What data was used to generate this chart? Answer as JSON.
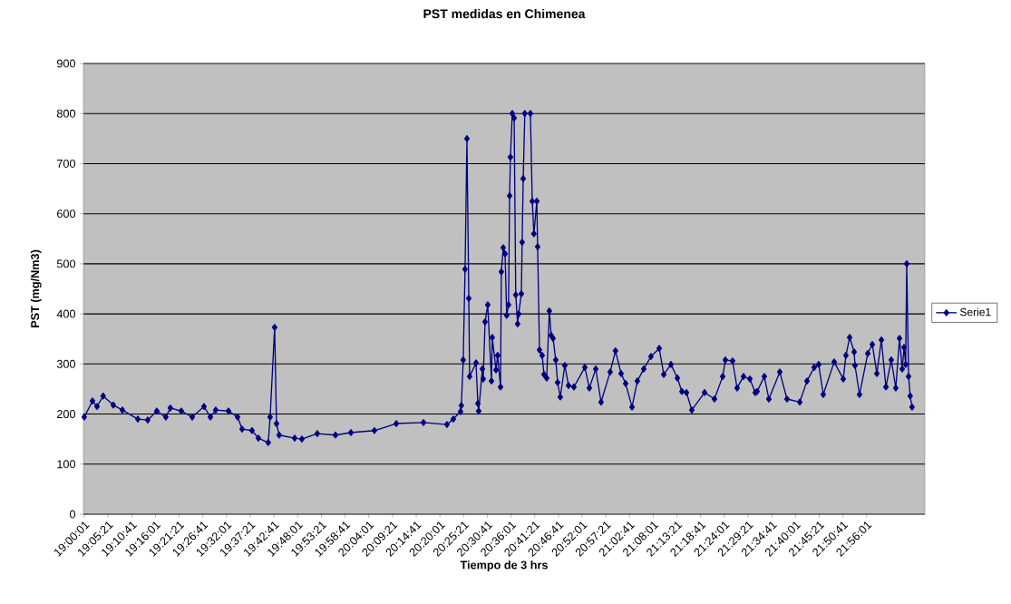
{
  "chart_data": {
    "type": "line",
    "title": "PST medidas en Chimenea",
    "xlabel": "Tiempo de 3 hrs",
    "ylabel": "PST (mg/Nm3)",
    "series": [
      {
        "name": "Serie1",
        "color": "#000080",
        "x": [
          19.0,
          19.031,
          19.048,
          19.071,
          19.109,
          19.143,
          19.201,
          19.238,
          19.272,
          19.306,
          19.323,
          19.364,
          19.405,
          19.449,
          19.473,
          19.493,
          19.541,
          19.575,
          19.592,
          19.629,
          19.653,
          19.69,
          19.697,
          19.714,
          19.721,
          19.731,
          19.789,
          19.816,
          19.874,
          19.942,
          20.0,
          20.088,
          20.17,
          20.272,
          20.36,
          20.384,
          20.411,
          20.414,
          20.421,
          20.428,
          20.435,
          20.442,
          20.445,
          20.469,
          20.476,
          20.479,
          20.493,
          20.496,
          20.503,
          20.513,
          20.527,
          20.53,
          20.544,
          20.55,
          20.561,
          20.564,
          20.571,
          20.578,
          20.584,
          20.591,
          20.595,
          20.598,
          20.605,
          20.612,
          20.618,
          20.625,
          20.629,
          20.639,
          20.642,
          20.646,
          20.652,
          20.673,
          20.68,
          20.686,
          20.697,
          20.7,
          20.707,
          20.717,
          20.724,
          20.734,
          20.744,
          20.751,
          20.758,
          20.768,
          20.775,
          20.785,
          20.802,
          20.816,
          20.836,
          20.877,
          20.894,
          20.918,
          20.938,
          20.972,
          20.992,
          21.013,
          21.03,
          21.054,
          21.074,
          21.098,
          21.125,
          21.156,
          21.173,
          21.2,
          21.224,
          21.241,
          21.258,
          21.278,
          21.326,
          21.363,
          21.394,
          21.404,
          21.431,
          21.448,
          21.472,
          21.496,
          21.516,
          21.523,
          21.55,
          21.567,
          21.608,
          21.635,
          21.683,
          21.71,
          21.737,
          21.754,
          21.771,
          21.812,
          21.846,
          21.856,
          21.87,
          21.887,
          21.89,
          21.907,
          21.938,
          21.955,
          21.972,
          21.989,
          22.006,
          22.026,
          22.043,
          22.057,
          22.067,
          22.074,
          22.08,
          22.084,
          22.091,
          22.097,
          22.104
        ],
        "values": [
          194,
          226,
          215,
          236,
          218,
          208,
          190,
          188,
          206,
          194,
          212,
          206,
          194,
          215,
          194,
          208,
          206,
          194,
          170,
          167,
          152,
          143,
          194,
          373,
          181,
          158,
          152,
          150,
          161,
          158,
          163,
          167,
          181,
          183,
          179,
          190,
          205,
          217,
          308,
          489,
          750,
          431,
          275,
          302,
          221,
          206,
          290,
          270,
          384,
          418,
          266,
          353,
          288,
          317,
          254,
          484,
          532,
          520,
          397,
          418,
          636,
          713,
          800,
          791,
          438,
          380,
          400,
          440,
          543,
          670,
          800,
          800,
          625,
          560,
          625,
          534,
          328,
          317,
          279,
          272,
          406,
          357,
          351,
          308,
          263,
          234,
          297,
          257,
          254,
          293,
          252,
          290,
          224,
          284,
          326,
          281,
          261,
          214,
          266,
          290,
          315,
          331,
          279,
          299,
          272,
          245,
          243,
          208,
          243,
          230,
          275,
          308,
          306,
          252,
          275,
          270,
          243,
          245,
          275,
          230,
          284,
          230,
          224,
          266,
          293,
          299,
          239,
          304,
          270,
          317,
          353,
          324,
          297,
          239,
          321,
          339,
          281,
          348,
          254,
          308,
          252,
          351,
          290,
          333,
          299,
          500,
          275,
          236,
          214
        ]
      }
    ],
    "xlim": [
      18.997,
      22.152
    ],
    "xticks": [
      {
        "value": 19.0003,
        "label": "19:00:01"
      },
      {
        "value": 19.0892,
        "label": "19:05:21"
      },
      {
        "value": 19.1781,
        "label": "19:10:41"
      },
      {
        "value": 19.2669,
        "label": "19:16:01"
      },
      {
        "value": 19.3558,
        "label": "19:21:21"
      },
      {
        "value": 19.4447,
        "label": "19:26:41"
      },
      {
        "value": 19.5336,
        "label": "19:32:01"
      },
      {
        "value": 19.6225,
        "label": "19:37:21"
      },
      {
        "value": 19.7114,
        "label": "19:42:41"
      },
      {
        "value": 19.8003,
        "label": "19:48:01"
      },
      {
        "value": 19.8892,
        "label": "19:53:21"
      },
      {
        "value": 19.9781,
        "label": "19:58:41"
      },
      {
        "value": 20.0669,
        "label": "20:04:01"
      },
      {
        "value": 20.1558,
        "label": "20:09:21"
      },
      {
        "value": 20.2447,
        "label": "20:14:41"
      },
      {
        "value": 20.3336,
        "label": "20:20:01"
      },
      {
        "value": 20.4225,
        "label": "20:25:21"
      },
      {
        "value": 20.5114,
        "label": "20:30:41"
      },
      {
        "value": 20.6003,
        "label": "20:36:01"
      },
      {
        "value": 20.6892,
        "label": "20:41:21"
      },
      {
        "value": 20.7781,
        "label": "20:46:41"
      },
      {
        "value": 20.8669,
        "label": "20:52:01"
      },
      {
        "value": 20.9558,
        "label": "20:57:21"
      },
      {
        "value": 21.0447,
        "label": "21:02:41"
      },
      {
        "value": 21.1336,
        "label": "21:08:01"
      },
      {
        "value": 21.2225,
        "label": "21:13:21"
      },
      {
        "value": 21.3114,
        "label": "21:18:41"
      },
      {
        "value": 21.4003,
        "label": "21:24:01"
      },
      {
        "value": 21.4892,
        "label": "21:29:21"
      },
      {
        "value": 21.5781,
        "label": "21:34:41"
      },
      {
        "value": 21.6669,
        "label": "21:40:01"
      },
      {
        "value": 21.7558,
        "label": "21:45:21"
      },
      {
        "value": 21.8447,
        "label": "21:50:41"
      },
      {
        "value": 21.9336,
        "label": "21:56:01"
      }
    ],
    "ylim": [
      0,
      900
    ],
    "yticks": [
      0,
      100,
      200,
      300,
      400,
      500,
      600,
      700,
      800,
      900
    ],
    "grid": "y",
    "legend": "right",
    "marker": "diamond",
    "line_style": "solid"
  }
}
